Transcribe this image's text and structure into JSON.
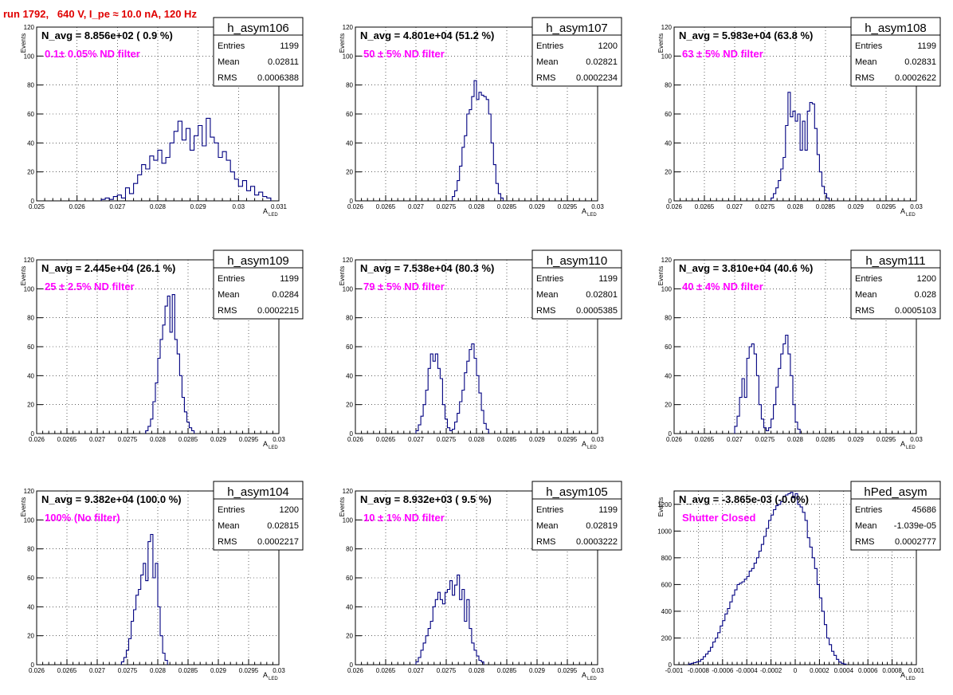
{
  "page": {
    "title": "run 1792,   640 V, I_pe ≈ 10.0 nA, 120 Hz"
  },
  "chart_data": [
    {
      "type": "bar",
      "name": "h_asym106",
      "navg": "N_avg = 8.856e+02 ( 0.9 %)",
      "filter": "0.1± 0.05% ND filter",
      "stats": {
        "Entries": "1199",
        "Mean": "0.02811",
        "RMS": "0.0006388"
      },
      "xlim": [
        0.025,
        0.031
      ],
      "ylim": [
        0,
        120
      ],
      "xticks": [
        "0.025",
        "0.026",
        "0.027",
        "0.028",
        "0.029",
        "0.03",
        "0.031"
      ],
      "yticks": [
        "0",
        "20",
        "40",
        "60",
        "80",
        "100",
        "120"
      ],
      "xlabel": "A",
      "xlabel_sub": "LED",
      "ylabel": "Events",
      "bin_lo": 0.0266,
      "bin_w": 0.0001,
      "values": [
        1,
        2,
        1,
        3,
        4,
        2,
        9,
        5,
        12,
        18,
        25,
        22,
        31,
        28,
        35,
        26,
        30,
        40,
        48,
        55,
        42,
        50,
        35,
        45,
        52,
        38,
        57,
        44,
        40,
        30,
        34,
        28,
        20,
        15,
        10,
        14,
        7,
        10,
        4,
        6,
        3,
        2
      ]
    },
    {
      "type": "bar",
      "name": "h_asym107",
      "navg": "N_avg = 4.801e+04 (51.2 %)",
      "filter": "50 ± 5% ND filter",
      "stats": {
        "Entries": "1200",
        "Mean": "0.02821",
        "RMS": "0.0002234"
      },
      "xlim": [
        0.026,
        0.03
      ],
      "ylim": [
        0,
        120
      ],
      "xticks": [
        "0.026",
        "0.0265",
        "0.027",
        "0.0275",
        "0.028",
        "0.0285",
        "0.029",
        "0.0295",
        "0.03"
      ],
      "yticks": [
        "0",
        "20",
        "40",
        "60",
        "80",
        "100",
        "120"
      ],
      "xlabel": "A",
      "xlabel_sub": "LED",
      "ylabel": "Events",
      "bin_lo": 0.0276,
      "bin_w": 4e-05,
      "values": [
        3,
        7,
        14,
        24,
        37,
        45,
        60,
        63,
        72,
        83,
        70,
        75,
        73,
        72,
        70,
        60,
        40,
        25,
        12,
        5,
        2
      ]
    },
    {
      "type": "bar",
      "name": "h_asym108",
      "navg": "N_avg = 5.983e+04 (63.8 %)",
      "filter": "63 ± 5% ND filter",
      "stats": {
        "Entries": "1199",
        "Mean": "0.02831",
        "RMS": "0.0002622"
      },
      "xlim": [
        0.026,
        0.03
      ],
      "ylim": [
        0,
        120
      ],
      "xticks": [
        "0.026",
        "0.0265",
        "0.027",
        "0.0275",
        "0.028",
        "0.0285",
        "0.029",
        "0.0295",
        "0.03"
      ],
      "yticks": [
        "0",
        "20",
        "40",
        "60",
        "80",
        "100",
        "120"
      ],
      "xlabel": "A",
      "xlabel_sub": "LED",
      "ylabel": "Events",
      "bin_lo": 0.0276,
      "bin_w": 4e-05,
      "values": [
        2,
        5,
        9,
        14,
        22,
        30,
        52,
        75,
        58,
        62,
        55,
        60,
        35,
        55,
        35,
        62,
        68,
        67,
        50,
        32,
        20,
        10,
        5,
        2
      ]
    },
    {
      "type": "bar",
      "name": "h_asym109",
      "navg": "N_avg = 2.445e+04 (26.1 %)",
      "filter": "25 ± 2.5% ND filter",
      "stats": {
        "Entries": "1199",
        "Mean": "0.0284",
        "RMS": "0.0002215"
      },
      "xlim": [
        0.026,
        0.03
      ],
      "ylim": [
        0,
        120
      ],
      "xticks": [
        "0.026",
        "0.0265",
        "0.027",
        "0.0275",
        "0.028",
        "0.0285",
        "0.029",
        "0.0295",
        "0.03"
      ],
      "yticks": [
        "0",
        "20",
        "40",
        "60",
        "80",
        "100",
        "120"
      ],
      "xlabel": "A",
      "xlabel_sub": "LED",
      "ylabel": "Events",
      "bin_lo": 0.0278,
      "bin_w": 4e-05,
      "values": [
        2,
        5,
        10,
        22,
        35,
        52,
        65,
        75,
        88,
        95,
        70,
        96,
        65,
        55,
        40,
        25,
        15,
        8,
        4,
        2
      ]
    },
    {
      "type": "bar",
      "name": "h_asym110",
      "navg": "N_avg = 7.538e+04 (80.3 %)",
      "filter": "79 ± 5% ND filter",
      "stats": {
        "Entries": "1199",
        "Mean": "0.02801",
        "RMS": "0.0005385"
      },
      "xlim": [
        0.026,
        0.03
      ],
      "ylim": [
        0,
        120
      ],
      "xticks": [
        "0.026",
        "0.0265",
        "0.027",
        "0.0275",
        "0.028",
        "0.0285",
        "0.029",
        "0.0295",
        "0.03"
      ],
      "yticks": [
        "0",
        "20",
        "40",
        "60",
        "80",
        "100",
        "120"
      ],
      "xlabel": "A",
      "xlabel_sub": "LED",
      "ylabel": "Events",
      "bin_lo": 0.027,
      "bin_w": 4e-05,
      "values": [
        2,
        6,
        12,
        20,
        30,
        45,
        55,
        50,
        55,
        45,
        38,
        20,
        10,
        4,
        2,
        3,
        8,
        14,
        22,
        30,
        42,
        50,
        58,
        62,
        52,
        40,
        28,
        16,
        7,
        3
      ]
    },
    {
      "type": "bar",
      "name": "h_asym111",
      "navg": "N_avg = 3.810e+04 (40.6 %)",
      "filter": "40 ± 4% ND filter",
      "stats": {
        "Entries": "1200",
        "Mean": "0.028",
        "RMS": "0.0005103"
      },
      "xlim": [
        0.026,
        0.03
      ],
      "ylim": [
        0,
        120
      ],
      "xticks": [
        "0.026",
        "0.0265",
        "0.027",
        "0.0275",
        "0.028",
        "0.0285",
        "0.029",
        "0.0295",
        "0.03"
      ],
      "yticks": [
        "0",
        "20",
        "40",
        "60",
        "80",
        "100",
        "120"
      ],
      "xlabel": "A",
      "xlabel_sub": "LED",
      "ylabel": "Events",
      "bin_lo": 0.027,
      "bin_w": 4e-05,
      "values": [
        5,
        12,
        25,
        38,
        25,
        52,
        60,
        62,
        55,
        40,
        20,
        10,
        4,
        2,
        4,
        10,
        20,
        32,
        45,
        55,
        62,
        68,
        55,
        40,
        20,
        8,
        3
      ]
    },
    {
      "type": "bar",
      "name": "h_asym104",
      "navg": "N_avg = 9.382e+04 (100.0 %)",
      "filter": "100% (No filter)",
      "stats": {
        "Entries": "1200",
        "Mean": "0.02815",
        "RMS": "0.0002217"
      },
      "xlim": [
        0.026,
        0.03
      ],
      "ylim": [
        0,
        120
      ],
      "xticks": [
        "0.026",
        "0.0265",
        "0.027",
        "0.0275",
        "0.028",
        "0.0285",
        "0.029",
        "0.0295",
        "0.03"
      ],
      "yticks": [
        "0",
        "20",
        "40",
        "60",
        "80",
        "100",
        "120"
      ],
      "xlabel": "A",
      "xlabel_sub": "LED",
      "ylabel": "Events",
      "bin_lo": 0.0274,
      "bin_w": 4e-05,
      "values": [
        2,
        5,
        10,
        18,
        30,
        38,
        48,
        52,
        62,
        70,
        58,
        85,
        90,
        60,
        70,
        40,
        20,
        8,
        3
      ]
    },
    {
      "type": "bar",
      "name": "h_asym105",
      "navg": "N_avg = 8.932e+03 ( 9.5 %)",
      "filter": "10 ± 1% ND filter",
      "stats": {
        "Entries": "1199",
        "Mean": "0.02819",
        "RMS": "0.0003222"
      },
      "xlim": [
        0.026,
        0.03
      ],
      "ylim": [
        0,
        120
      ],
      "xticks": [
        "0.026",
        "0.0265",
        "0.027",
        "0.0275",
        "0.028",
        "0.0285",
        "0.029",
        "0.0295",
        "0.03"
      ],
      "yticks": [
        "0",
        "20",
        "40",
        "60",
        "80",
        "100",
        "120"
      ],
      "xlabel": "A",
      "xlabel_sub": "LED",
      "ylabel": "Events",
      "bin_lo": 0.027,
      "bin_w": 4e-05,
      "values": [
        2,
        5,
        10,
        15,
        20,
        25,
        30,
        40,
        45,
        50,
        45,
        42,
        50,
        52,
        58,
        48,
        55,
        62,
        45,
        52,
        30,
        45,
        25,
        15,
        10,
        6,
        3,
        2
      ]
    },
    {
      "type": "bar",
      "name": "hPed_asym",
      "navg": "N_avg = -3.865e-03 (-0.0%)",
      "filter": "Shutter Closed",
      "stats": {
        "Entries": "45686",
        "Mean": "-1.039e-05",
        "RMS": "0.0002777"
      },
      "xlim": [
        -0.001,
        0.001
      ],
      "ylim": [
        0,
        1300
      ],
      "xticks": [
        "-0.001",
        "-0.0008",
        "-0.0006",
        "-0.0004",
        "-0.0002",
        "0",
        "0.0002",
        "0.0004",
        "0.0006",
        "0.0008",
        "0.001"
      ],
      "yticks": [
        "0",
        "200",
        "400",
        "600",
        "800",
        "1000",
        "1200"
      ],
      "xlabel": "A",
      "xlabel_sub": "LED",
      "ylabel": "Events",
      "bin_lo": -0.00088,
      "bin_w": 2e-05,
      "values": [
        5,
        10,
        15,
        20,
        25,
        40,
        60,
        80,
        100,
        130,
        170,
        200,
        240,
        290,
        330,
        380,
        420,
        470,
        520,
        560,
        600,
        610,
        620,
        640,
        660,
        700,
        720,
        760,
        800,
        850,
        900,
        960,
        1020,
        1080,
        1120,
        1160,
        1190,
        1200,
        1220,
        1260,
        1270,
        1280,
        1290,
        1250,
        1280,
        1200,
        1180,
        1140,
        1080,
        950,
        880,
        800,
        720,
        600,
        500,
        400,
        300,
        200,
        150,
        100,
        70,
        40,
        20,
        10,
        5
      ]
    }
  ]
}
